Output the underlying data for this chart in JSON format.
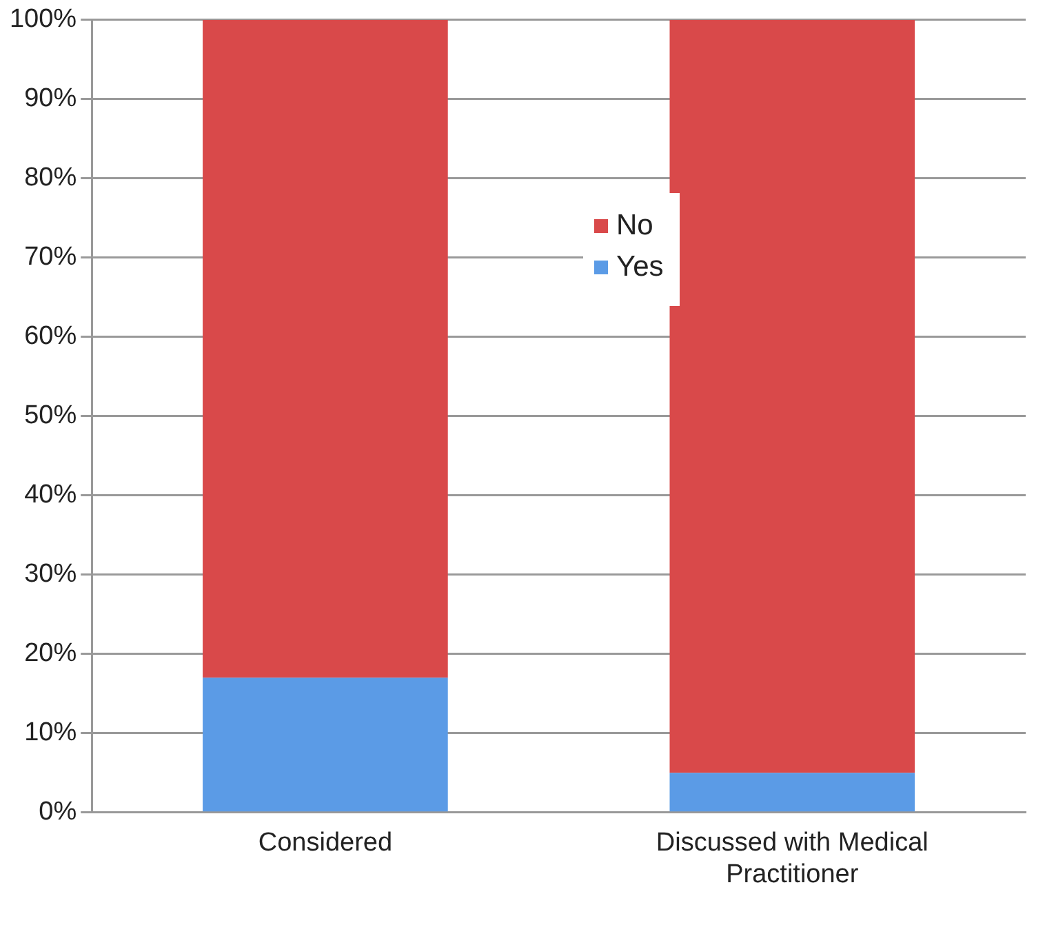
{
  "chart_data": {
    "type": "bar",
    "stacked": true,
    "categories": [
      "Considered",
      "Discussed with Medical Practitioner"
    ],
    "series": [
      {
        "name": "Yes",
        "color": "#5b9be6",
        "values": [
          17,
          5
        ]
      },
      {
        "name": "No",
        "color": "#d9494a",
        "values": [
          83,
          95
        ]
      }
    ],
    "ylim": [
      0,
      100
    ],
    "yticks": [
      {
        "value": 0,
        "label": "0%"
      },
      {
        "value": 10,
        "label": "10%"
      },
      {
        "value": 20,
        "label": "20%"
      },
      {
        "value": 30,
        "label": "30%"
      },
      {
        "value": 40,
        "label": "40%"
      },
      {
        "value": 50,
        "label": "50%"
      },
      {
        "value": 60,
        "label": "60%"
      },
      {
        "value": 70,
        "label": "70%"
      },
      {
        "value": 80,
        "label": "80%"
      },
      {
        "value": 90,
        "label": "90%"
      },
      {
        "value": 100,
        "label": "100%"
      }
    ],
    "grid": "y",
    "legend": "top"
  }
}
